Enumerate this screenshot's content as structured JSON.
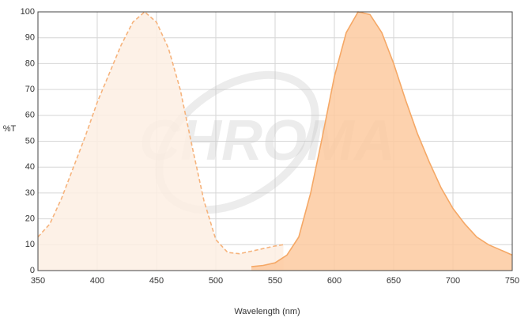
{
  "chart_data": {
    "type": "area",
    "watermark": "CHROMA",
    "x_label": "Wavelength (nm)",
    "y_label": "%T",
    "xlim": [
      350,
      750
    ],
    "ylim": [
      0,
      100
    ],
    "xticks": [
      350,
      400,
      450,
      500,
      550,
      600,
      650,
      700,
      750
    ],
    "yticks": [
      0,
      10,
      20,
      30,
      40,
      50,
      60,
      70,
      80,
      90,
      100
    ],
    "grid": true,
    "series": [
      {
        "color": "#f6b37c",
        "fill": "#fdeee3",
        "dashed": true,
        "x": [
          350,
          360,
          370,
          380,
          390,
          400,
          410,
          420,
          430,
          440,
          450,
          460,
          470,
          480,
          490,
          500,
          510,
          520,
          530,
          540,
          550,
          557
        ],
        "values": [
          13,
          18,
          28,
          40,
          52,
          65,
          76,
          87,
          96,
          100,
          96,
          86,
          70,
          48,
          27,
          12,
          7,
          6.5,
          7.5,
          8.5,
          9.5,
          10
        ]
      },
      {
        "color": "#f5a866",
        "fill": "#fdcaa0",
        "dashed": false,
        "x": [
          530,
          540,
          550,
          560,
          570,
          580,
          590,
          600,
          610,
          620,
          630,
          640,
          650,
          660,
          670,
          680,
          690,
          700,
          710,
          720,
          730,
          740,
          750
        ],
        "values": [
          1.5,
          2,
          3,
          6,
          13,
          30,
          52,
          75,
          92,
          100,
          99,
          92,
          80,
          66,
          53,
          42,
          32,
          24,
          18,
          13,
          10,
          8,
          6
        ]
      }
    ]
  }
}
